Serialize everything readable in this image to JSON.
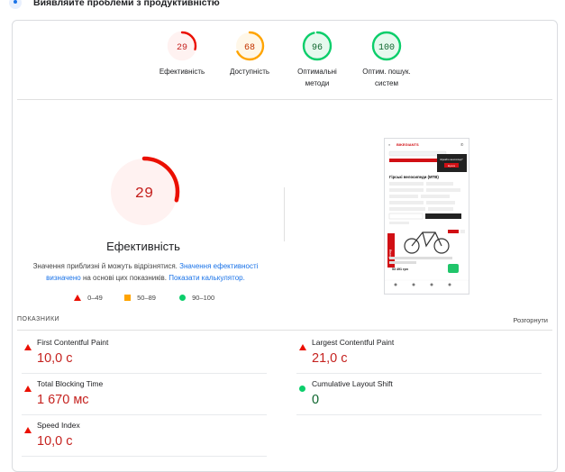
{
  "header": {
    "title": "Виявляйте проблеми з продуктивністю",
    "icon": "diagnostics-icon"
  },
  "gauges": [
    {
      "score": "29",
      "label": "Ефективність",
      "color": "#eb0f00",
      "bg": "#fff2f1",
      "fill": 0.29
    },
    {
      "score": "68",
      "label": "Доступність",
      "color": "#ffa400",
      "bg": "#fff7e8",
      "fill": 0.68
    },
    {
      "score": "96",
      "label": "Оптимальні методи",
      "color": "#0cce6b",
      "bg": "#e6f9ee",
      "fill": 0.96
    },
    {
      "score": "100",
      "label": "Оптим. пошук. систем",
      "color": "#0cce6b",
      "bg": "#e6f9ee",
      "fill": 1.0
    }
  ],
  "performance": {
    "score": "29",
    "fill": 0.29,
    "title": "Ефективність",
    "note_text": "Значення приблизні й можуть відрізнятися.",
    "note_link1": "Значення ефективності визначено",
    "note_mid": "на основі цих показників.",
    "note_link2": "Показати калькулятор."
  },
  "legend": {
    "bad": "0–49",
    "avg": "50–89",
    "good": "90–100"
  },
  "thumbnail": {
    "brand": "BIKEGIANTS",
    "heading": "Гірські велосипеди (MTB)",
    "price": "53 491 грн",
    "side_tag": "Склад",
    "popup_text": "Шукайте велосипед?",
    "popup_btn": "Шукати"
  },
  "metrics": {
    "heading": "ПОКАЗНИКИ",
    "expand": "Розгорнути",
    "items": [
      {
        "name": "First Contentful Paint",
        "value": "10,0 с",
        "status": "bad"
      },
      {
        "name": "Largest Contentful Paint",
        "value": "21,0 с",
        "status": "bad"
      },
      {
        "name": "Total Blocking Time",
        "value": "1 670 мс",
        "status": "bad"
      },
      {
        "name": "Cumulative Layout Shift",
        "value": "0",
        "status": "good"
      },
      {
        "name": "Speed Index",
        "value": "10,0 с",
        "status": "bad"
      }
    ]
  }
}
